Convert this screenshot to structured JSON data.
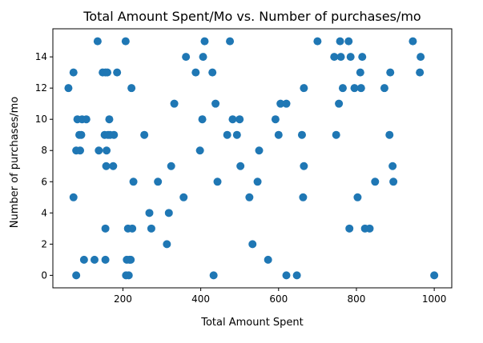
{
  "chart_data": {
    "type": "scatter",
    "title": "Total Amount Spent/Mo vs. Number of purchases/mo",
    "xlabel": "Total Amount Spent",
    "ylabel": "Number of purchases/mo",
    "xlim": [
      20,
      1045
    ],
    "ylim": [
      -0.8,
      15.8
    ],
    "xticks": [
      200,
      400,
      600,
      800,
      1000
    ],
    "yticks": [
      0,
      2,
      4,
      6,
      8,
      10,
      12,
      14
    ],
    "grid": false,
    "color": "#1f77b4",
    "points": [
      {
        "x": 60,
        "y": 12
      },
      {
        "x": 73,
        "y": 13
      },
      {
        "x": 73,
        "y": 5
      },
      {
        "x": 80,
        "y": 0
      },
      {
        "x": 80,
        "y": 8
      },
      {
        "x": 83,
        "y": 10
      },
      {
        "x": 88,
        "y": 9
      },
      {
        "x": 90,
        "y": 8
      },
      {
        "x": 93,
        "y": 9
      },
      {
        "x": 95,
        "y": 10
      },
      {
        "x": 100,
        "y": 1
      },
      {
        "x": 106,
        "y": 10
      },
      {
        "x": 127,
        "y": 1
      },
      {
        "x": 135,
        "y": 15
      },
      {
        "x": 138,
        "y": 8
      },
      {
        "x": 148,
        "y": 13
      },
      {
        "x": 153,
        "y": 9
      },
      {
        "x": 155,
        "y": 13
      },
      {
        "x": 155,
        "y": 3
      },
      {
        "x": 155,
        "y": 1
      },
      {
        "x": 157,
        "y": 7
      },
      {
        "x": 158,
        "y": 8
      },
      {
        "x": 160,
        "y": 13
      },
      {
        "x": 162,
        "y": 9
      },
      {
        "x": 165,
        "y": 10
      },
      {
        "x": 167,
        "y": 9
      },
      {
        "x": 175,
        "y": 7
      },
      {
        "x": 177,
        "y": 9
      },
      {
        "x": 185,
        "y": 13
      },
      {
        "x": 207,
        "y": 15
      },
      {
        "x": 208,
        "y": 0
      },
      {
        "x": 210,
        "y": 1
      },
      {
        "x": 213,
        "y": 3
      },
      {
        "x": 215,
        "y": 0
      },
      {
        "x": 217,
        "y": 1
      },
      {
        "x": 220,
        "y": 1
      },
      {
        "x": 222,
        "y": 12
      },
      {
        "x": 224,
        "y": 3
      },
      {
        "x": 227,
        "y": 6
      },
      {
        "x": 255,
        "y": 9
      },
      {
        "x": 268,
        "y": 4
      },
      {
        "x": 273,
        "y": 3
      },
      {
        "x": 290,
        "y": 6
      },
      {
        "x": 313,
        "y": 2
      },
      {
        "x": 318,
        "y": 4
      },
      {
        "x": 324,
        "y": 7
      },
      {
        "x": 332,
        "y": 11
      },
      {
        "x": 356,
        "y": 5
      },
      {
        "x": 362,
        "y": 14
      },
      {
        "x": 387,
        "y": 13
      },
      {
        "x": 398,
        "y": 8
      },
      {
        "x": 404,
        "y": 10
      },
      {
        "x": 406,
        "y": 14
      },
      {
        "x": 410,
        "y": 15
      },
      {
        "x": 430,
        "y": 13
      },
      {
        "x": 433,
        "y": 0
      },
      {
        "x": 438,
        "y": 11
      },
      {
        "x": 443,
        "y": 6
      },
      {
        "x": 468,
        "y": 9
      },
      {
        "x": 475,
        "y": 15
      },
      {
        "x": 482,
        "y": 10
      },
      {
        "x": 493,
        "y": 9
      },
      {
        "x": 500,
        "y": 10
      },
      {
        "x": 502,
        "y": 7
      },
      {
        "x": 525,
        "y": 5
      },
      {
        "x": 533,
        "y": 2
      },
      {
        "x": 546,
        "y": 6
      },
      {
        "x": 550,
        "y": 8
      },
      {
        "x": 573,
        "y": 1
      },
      {
        "x": 592,
        "y": 10
      },
      {
        "x": 600,
        "y": 9
      },
      {
        "x": 605,
        "y": 11
      },
      {
        "x": 620,
        "y": 11
      },
      {
        "x": 620,
        "y": 0
      },
      {
        "x": 647,
        "y": 0
      },
      {
        "x": 660,
        "y": 9
      },
      {
        "x": 663,
        "y": 5
      },
      {
        "x": 665,
        "y": 7
      },
      {
        "x": 665,
        "y": 12
      },
      {
        "x": 700,
        "y": 15
      },
      {
        "x": 743,
        "y": 14
      },
      {
        "x": 748,
        "y": 9
      },
      {
        "x": 755,
        "y": 11
      },
      {
        "x": 758,
        "y": 15
      },
      {
        "x": 760,
        "y": 14
      },
      {
        "x": 765,
        "y": 12
      },
      {
        "x": 780,
        "y": 15
      },
      {
        "x": 782,
        "y": 3
      },
      {
        "x": 785,
        "y": 14
      },
      {
        "x": 795,
        "y": 12
      },
      {
        "x": 803,
        "y": 5
      },
      {
        "x": 810,
        "y": 13
      },
      {
        "x": 812,
        "y": 12
      },
      {
        "x": 815,
        "y": 14
      },
      {
        "x": 822,
        "y": 3
      },
      {
        "x": 834,
        "y": 3
      },
      {
        "x": 848,
        "y": 6
      },
      {
        "x": 872,
        "y": 12
      },
      {
        "x": 885,
        "y": 9
      },
      {
        "x": 887,
        "y": 13
      },
      {
        "x": 893,
        "y": 7
      },
      {
        "x": 895,
        "y": 6
      },
      {
        "x": 945,
        "y": 15
      },
      {
        "x": 963,
        "y": 13
      },
      {
        "x": 965,
        "y": 14
      },
      {
        "x": 1000,
        "y": 0
      }
    ]
  }
}
